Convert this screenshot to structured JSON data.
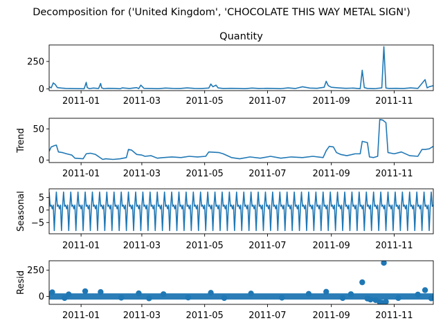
{
  "figure": {
    "suptitle": "Decomposition for ('United Kingdom', 'CHOCOLATE THIS WAY METAL SIGN')"
  },
  "colors": {
    "series": "#1f77b4",
    "axes": "#000000",
    "background": "#ffffff"
  },
  "chart_data": [
    {
      "type": "line",
      "title": "Quantity",
      "xlabel": "",
      "ylabel": "",
      "x_range": [
        "2010-12-01",
        "2011-12-09"
      ],
      "ylim": [
        -15,
        400
      ],
      "yticks": [
        0,
        250
      ],
      "xticks": [
        "2011-01",
        "2011-03",
        "2011-05",
        "2011-07",
        "2011-09",
        "2011-11"
      ],
      "grid": false,
      "series": [
        {
          "x": [
            "2010-12-01",
            "2010-12-03",
            "2010-12-05",
            "2010-12-07",
            "2010-12-09",
            "2010-12-13",
            "2010-12-17",
            "2010-12-21",
            "2011-01-04",
            "2011-01-06",
            "2011-01-07",
            "2011-01-09",
            "2011-01-13",
            "2011-01-18",
            "2011-01-20",
            "2011-01-21",
            "2011-01-23",
            "2011-01-27",
            "2011-02-03",
            "2011-02-08",
            "2011-02-10",
            "2011-02-17",
            "2011-02-24",
            "2011-02-26",
            "2011-02-28",
            "2011-03-03",
            "2011-03-10",
            "2011-03-17",
            "2011-03-24",
            "2011-03-31",
            "2011-04-07",
            "2011-04-14",
            "2011-04-21",
            "2011-04-28",
            "2011-05-05",
            "2011-05-07",
            "2011-05-09",
            "2011-05-12",
            "2011-05-14",
            "2011-05-19",
            "2011-05-26",
            "2011-06-02",
            "2011-06-09",
            "2011-06-16",
            "2011-06-23",
            "2011-06-30",
            "2011-07-07",
            "2011-07-14",
            "2011-07-21",
            "2011-07-28",
            "2011-08-04",
            "2011-08-11",
            "2011-08-18",
            "2011-08-25",
            "2011-08-27",
            "2011-08-29",
            "2011-09-01",
            "2011-09-08",
            "2011-09-15",
            "2011-09-22",
            "2011-09-29",
            "2011-10-01",
            "2011-10-03",
            "2011-10-06",
            "2011-10-13",
            "2011-10-20",
            "2011-10-22",
            "2011-10-24",
            "2011-10-27",
            "2011-11-03",
            "2011-11-10",
            "2011-11-17",
            "2011-11-24",
            "2011-12-01",
            "2011-12-03",
            "2011-12-05",
            "2011-12-09"
          ],
          "values": [
            20,
            10,
            55,
            40,
            12,
            8,
            5,
            4,
            2,
            60,
            12,
            3,
            8,
            4,
            50,
            10,
            3,
            6,
            5,
            2,
            10,
            4,
            12,
            3,
            35,
            6,
            4,
            3,
            8,
            5,
            4,
            10,
            5,
            4,
            8,
            45,
            20,
            35,
            10,
            4,
            6,
            5,
            3,
            8,
            4,
            6,
            5,
            3,
            10,
            4,
            20,
            8,
            6,
            15,
            70,
            30,
            15,
            10,
            6,
            8,
            3,
            170,
            12,
            5,
            3,
            10,
            385,
            8,
            5,
            6,
            4,
            10,
            5,
            85,
            10,
            20,
            30
          ]
        }
      ]
    },
    {
      "type": "line",
      "title": "",
      "xlabel": "",
      "ylabel": "Trend",
      "x_range": [
        "2010-12-01",
        "2011-12-09"
      ],
      "ylim": [
        -4,
        67
      ],
      "yticks": [
        0,
        50
      ],
      "xticks": [
        "2011-01",
        "2011-03",
        "2011-05",
        "2011-07",
        "2011-09",
        "2011-11"
      ],
      "grid": false,
      "series": [
        {
          "x": [
            "2010-12-01",
            "2010-12-03",
            "2010-12-06",
            "2010-12-08",
            "2010-12-10",
            "2010-12-14",
            "2010-12-18",
            "2010-12-23",
            "2010-12-26",
            "2011-01-03",
            "2011-01-06",
            "2011-01-10",
            "2011-01-15",
            "2011-01-22",
            "2011-01-25",
            "2011-02-01",
            "2011-02-08",
            "2011-02-14",
            "2011-02-16",
            "2011-02-19",
            "2011-02-24",
            "2011-03-01",
            "2011-03-04",
            "2011-03-10",
            "2011-03-16",
            "2011-03-22",
            "2011-03-30",
            "2011-04-08",
            "2011-04-16",
            "2011-04-24",
            "2011-05-02",
            "2011-05-05",
            "2011-05-15",
            "2011-05-19",
            "2011-05-27",
            "2011-06-04",
            "2011-06-14",
            "2011-06-24",
            "2011-07-04",
            "2011-07-14",
            "2011-07-24",
            "2011-08-04",
            "2011-08-14",
            "2011-08-24",
            "2011-08-27",
            "2011-08-30",
            "2011-09-03",
            "2011-09-06",
            "2011-09-10",
            "2011-09-16",
            "2011-09-24",
            "2011-09-29",
            "2011-10-01",
            "2011-10-06",
            "2011-10-08",
            "2011-10-12",
            "2011-10-16",
            "2011-10-18",
            "2011-10-21",
            "2011-10-24",
            "2011-10-26",
            "2011-11-01",
            "2011-11-08",
            "2011-11-16",
            "2011-11-24",
            "2011-11-28",
            "2011-12-01",
            "2011-12-05",
            "2011-12-09"
          ],
          "values": [
            14,
            21,
            23,
            24,
            13,
            12,
            10,
            8,
            3,
            2,
            10,
            11,
            9,
            1,
            2,
            1,
            2,
            4,
            17,
            16,
            9,
            8,
            6,
            7,
            3,
            4,
            5,
            4,
            6,
            5,
            6,
            13,
            12,
            10,
            4,
            2,
            5,
            3,
            6,
            3,
            5,
            4,
            6,
            4,
            15,
            22,
            21,
            12,
            9,
            7,
            10,
            10,
            30,
            28,
            5,
            4,
            6,
            65,
            64,
            60,
            12,
            10,
            13,
            7,
            6,
            17,
            17,
            18,
            22
          ]
        }
      ]
    },
    {
      "type": "line",
      "title": "",
      "xlabel": "",
      "ylabel": "Seasonal",
      "x_range": [
        "2010-12-01",
        "2011-12-09"
      ],
      "ylim": [
        -9.5,
        8.5
      ],
      "yticks": [
        -5,
        0,
        5
      ],
      "xticks": [
        "2011-01",
        "2011-03",
        "2011-05",
        "2011-07",
        "2011-09",
        "2011-11"
      ],
      "grid": false,
      "period_days": 7,
      "cycle_pattern": [
        7.2,
        1.5,
        2.0,
        0.5,
        2.0,
        -8.2,
        1.3
      ],
      "series": [
        {
          "name": "",
          "values": []
        }
      ]
    },
    {
      "type": "scatter",
      "title": "",
      "xlabel": "",
      "ylabel": "Resid",
      "x_range": [
        "2010-12-01",
        "2011-12-09"
      ],
      "ylim": [
        -75,
        340
      ],
      "yticks": [
        0,
        250
      ],
      "xticks": [
        "2011-01",
        "2011-03",
        "2011-05",
        "2011-07",
        "2011-09",
        "2011-11"
      ],
      "grid": false,
      "baseline": 0,
      "series": [
        {
          "x": [
            "2010-12-04",
            "2010-12-16",
            "2010-12-20",
            "2011-01-05",
            "2011-01-20",
            "2011-02-09",
            "2011-02-26",
            "2011-03-08",
            "2011-03-22",
            "2011-04-15",
            "2011-05-07",
            "2011-05-20",
            "2011-06-15",
            "2011-07-15",
            "2011-08-10",
            "2011-08-27",
            "2011-09-12",
            "2011-09-20",
            "2011-10-01",
            "2011-10-06",
            "2011-10-09",
            "2011-10-14",
            "2011-10-18",
            "2011-10-20",
            "2011-10-22",
            "2011-10-24",
            "2011-11-05",
            "2011-11-24",
            "2011-12-01",
            "2011-12-07"
          ],
          "values": [
            40,
            -15,
            20,
            50,
            42,
            -12,
            30,
            -18,
            22,
            -10,
            35,
            -15,
            28,
            -12,
            25,
            45,
            -15,
            22,
            135,
            -20,
            -30,
            -35,
            -55,
            -58,
            320,
            -50,
            -15,
            18,
            60,
            -18
          ]
        }
      ]
    }
  ]
}
